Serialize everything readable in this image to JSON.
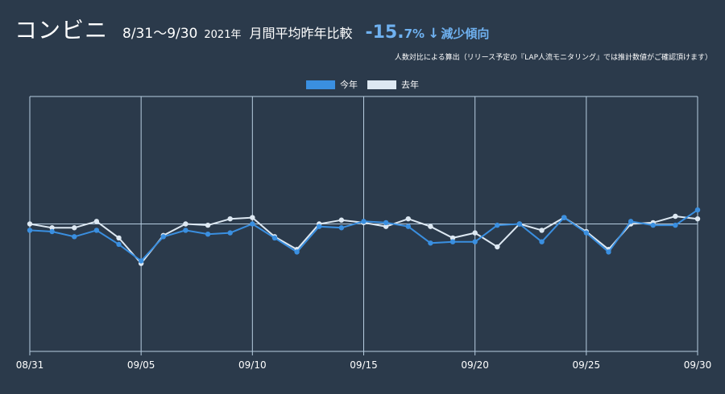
{
  "header": {
    "title": "コンビニ",
    "period": "8/31～9/30",
    "year": "2021年",
    "comparison": "月間平均昨年比較",
    "change_value": "-15.",
    "change_unit": "7%",
    "trend_icon": "arrow-down-icon",
    "trend_label": "減少傾向"
  },
  "note": "人数対比による算出（リリース予定の『LAP人流モニタリング』では推計数値がご確認頂けます）",
  "colors": {
    "background": "#2b3a4b",
    "this_year": "#3a8fe0",
    "last_year": "#dde8f2",
    "grid": "#b7cde0",
    "accent": "#6fb1f0"
  },
  "chart_data": {
    "type": "line",
    "x": [
      "08/31",
      "09/01",
      "09/02",
      "09/03",
      "09/04",
      "09/05",
      "09/06",
      "09/07",
      "09/08",
      "09/09",
      "09/10",
      "09/11",
      "09/12",
      "09/13",
      "09/14",
      "09/15",
      "09/16",
      "09/17",
      "09/18",
      "09/19",
      "09/20",
      "09/21",
      "09/22",
      "09/23",
      "09/24",
      "09/25",
      "09/26",
      "09/27",
      "09/28",
      "09/29",
      "09/30"
    ],
    "x_ticks": [
      "08/31",
      "09/05",
      "09/10",
      "09/15",
      "09/20",
      "09/25",
      "09/30"
    ],
    "ylim": [
      -100,
      100
    ],
    "baseline": 0,
    "grid": true,
    "legend_position": "top-center",
    "series": [
      {
        "name": "今年",
        "color": "#3a8fe0",
        "values": [
          -5,
          -6,
          -10,
          -5,
          -16,
          -29,
          -10,
          -5,
          -8,
          -7,
          0,
          -11,
          -22,
          -2,
          -3,
          2,
          1,
          -2,
          -15,
          -14,
          -14,
          -1,
          0,
          -14,
          5,
          -7,
          -22,
          2,
          -1,
          -1,
          11
        ]
      },
      {
        "name": "去年",
        "color": "#dde8f2",
        "values": [
          0,
          -3,
          -3,
          2,
          -11,
          -31,
          -9,
          0,
          -1,
          4,
          5,
          -10,
          -20,
          0,
          3,
          1,
          -2,
          4,
          -2,
          -11,
          -7,
          -18,
          0,
          -5,
          5,
          -6,
          -20,
          0,
          1,
          6,
          4
        ]
      }
    ]
  }
}
